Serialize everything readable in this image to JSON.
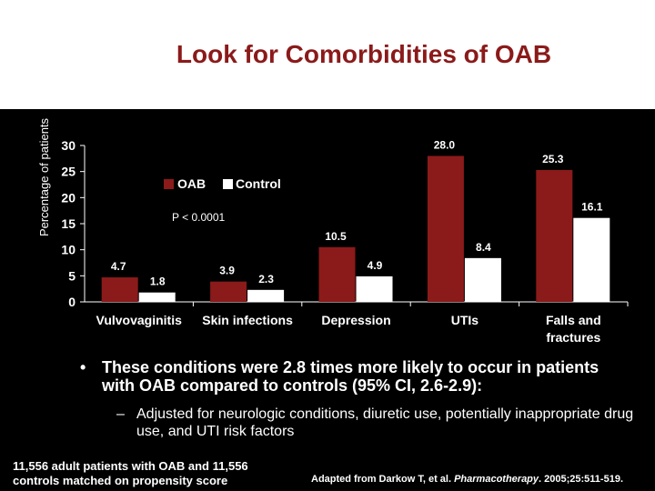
{
  "slide": {
    "title": "Look for Comorbidities of OAB",
    "bullet_main": "These conditions were 2.8 times more likely to occur in patients with OAB compared to controls (95% CI, 2.6-2.9):",
    "bullet_sub": "Adjusted for neurologic conditions, diuretic use, potentially inappropriate drug use, and UTI risk factors",
    "bullet_marker": "•",
    "sub_marker": "–",
    "footer_left": "11,556 adult patients with OAB and 11,556 controls matched on propensity score",
    "footer_right_prefix": "Adapted from Darkow T, et al. ",
    "footer_right_journal": "Pharmacotherapy",
    "footer_right_suffix": ". 2005;25:511-519."
  },
  "colors": {
    "oab": "#8b1a1a",
    "control": "#ffffff",
    "panel": "#000000",
    "title": "#8b1a1a"
  },
  "chart_data": {
    "type": "bar",
    "title": "",
    "ylabel": "Percentage of patients",
    "xlabel": "",
    "ylim": [
      0,
      30
    ],
    "yticks": [
      0,
      5,
      10,
      15,
      20,
      25,
      30
    ],
    "categories": [
      "Vulvovaginitis",
      "Skin infections",
      "Depression",
      "UTIs",
      "Falls and fractures"
    ],
    "series": [
      {
        "name": "OAB",
        "values": [
          4.7,
          3.9,
          10.5,
          28.0,
          25.3
        ],
        "labels": [
          "4.7",
          "3.9",
          "10.5",
          "28.0",
          "25.3"
        ]
      },
      {
        "name": "Control",
        "values": [
          1.8,
          2.3,
          4.9,
          8.4,
          16.1
        ],
        "labels": [
          "1.8",
          "2.3",
          "4.9",
          "8.4",
          "16.1"
        ]
      }
    ],
    "annotation": "P < 0.0001",
    "legend_position": "top-left"
  }
}
